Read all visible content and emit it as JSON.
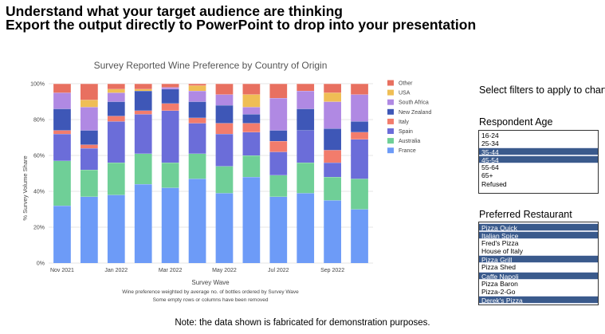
{
  "header": {
    "line1": "Understand what your target audience are thinking",
    "line2": "Export the output directly to PowerPoint to drop into your presentation"
  },
  "filters": {
    "title": "Select filters to apply to chart",
    "age": {
      "title": "Respondent Age",
      "options": [
        {
          "label": "16-24",
          "selected": false
        },
        {
          "label": "25-34",
          "selected": false
        },
        {
          "label": "35-44",
          "selected": true
        },
        {
          "label": "45-54",
          "selected": true
        },
        {
          "label": "55-64",
          "selected": false
        },
        {
          "label": "65+",
          "selected": false
        },
        {
          "label": "Refused",
          "selected": false
        }
      ]
    },
    "restaurant": {
      "title": "Preferred Restaurant",
      "options": [
        {
          "label": "Pizza Quick",
          "selected": true
        },
        {
          "label": "Italian Spice",
          "selected": true
        },
        {
          "label": "Fred's Pizza",
          "selected": false
        },
        {
          "label": "House of Italy",
          "selected": false
        },
        {
          "label": "Pizza Grill",
          "selected": true
        },
        {
          "label": "Pizza Shed",
          "selected": false
        },
        {
          "label": "Caffe Napoli",
          "selected": true
        },
        {
          "label": "Pizza Baron",
          "selected": false
        },
        {
          "label": "Pizza-2-Go",
          "selected": false
        },
        {
          "label": "Derek's Pizza",
          "selected": true
        }
      ]
    }
  },
  "footnote": "Note: the data shown is fabricated for demonstration purposes.",
  "chart_data": {
    "type": "bar",
    "stacked": true,
    "title": "Survey Reported Wine Preference by Country of Origin",
    "xlabel": "Survey Wave",
    "ylabel": "% Survey Volume Share",
    "notes": [
      "Wine preference weighted by average no. of bottles ordered by Survey Wave",
      "Some empty rows or columns have been removed"
    ],
    "x_tick_labels": [
      "Nov 2021",
      "Jan 2022",
      "Mar 2022",
      "May 2022",
      "Jul 2022",
      "Sep 2022"
    ],
    "categories": [
      "Nov 2021",
      "Dec 2021",
      "Jan 2022",
      "Feb 2022",
      "Mar 2022",
      "Apr 2022",
      "May 2022",
      "Jun 2022",
      "Jul 2022",
      "Aug 2022",
      "Sep 2022",
      "Oct 2022"
    ],
    "y_ticks": [
      "0%",
      "20%",
      "40%",
      "60%",
      "80%",
      "100%"
    ],
    "ylim": [
      0,
      100
    ],
    "grid": true,
    "legend_position": "right",
    "series": [
      {
        "name": "France",
        "color": "#6d9bf7",
        "values": [
          32,
          37,
          38,
          44,
          42,
          47,
          39,
          48,
          37,
          39,
          35,
          30
        ]
      },
      {
        "name": "Australia",
        "color": "#6fcf97",
        "values": [
          25,
          15,
          18,
          17,
          14,
          14,
          15,
          12,
          12,
          17,
          13,
          17
        ]
      },
      {
        "name": "Spain",
        "color": "#6b6dd9",
        "values": [
          15,
          12,
          23,
          22,
          29,
          17,
          18,
          13,
          13,
          18,
          8,
          22
        ]
      },
      {
        "name": "Italy",
        "color": "#f27c6c",
        "values": [
          2,
          2,
          3,
          2,
          4,
          3,
          6,
          5,
          6,
          0,
          7,
          4
        ]
      },
      {
        "name": "New Zealand",
        "color": "#3e57b7",
        "values": [
          12,
          8,
          8,
          11,
          8,
          9,
          10,
          5,
          6,
          12,
          12,
          6
        ]
      },
      {
        "name": "South Africa",
        "color": "#b089e3",
        "values": [
          9,
          13,
          5,
          0,
          1,
          6,
          6,
          4,
          18,
          10,
          15,
          15
        ]
      },
      {
        "name": "USA",
        "color": "#efbe55",
        "values": [
          0,
          4,
          2,
          1,
          0,
          3,
          0,
          7,
          0,
          0,
          5,
          0
        ]
      },
      {
        "name": "Other",
        "color": "#e87060",
        "values": [
          5,
          9,
          3,
          3,
          2,
          1,
          6,
          6,
          8,
          4,
          5,
          6
        ]
      }
    ]
  }
}
